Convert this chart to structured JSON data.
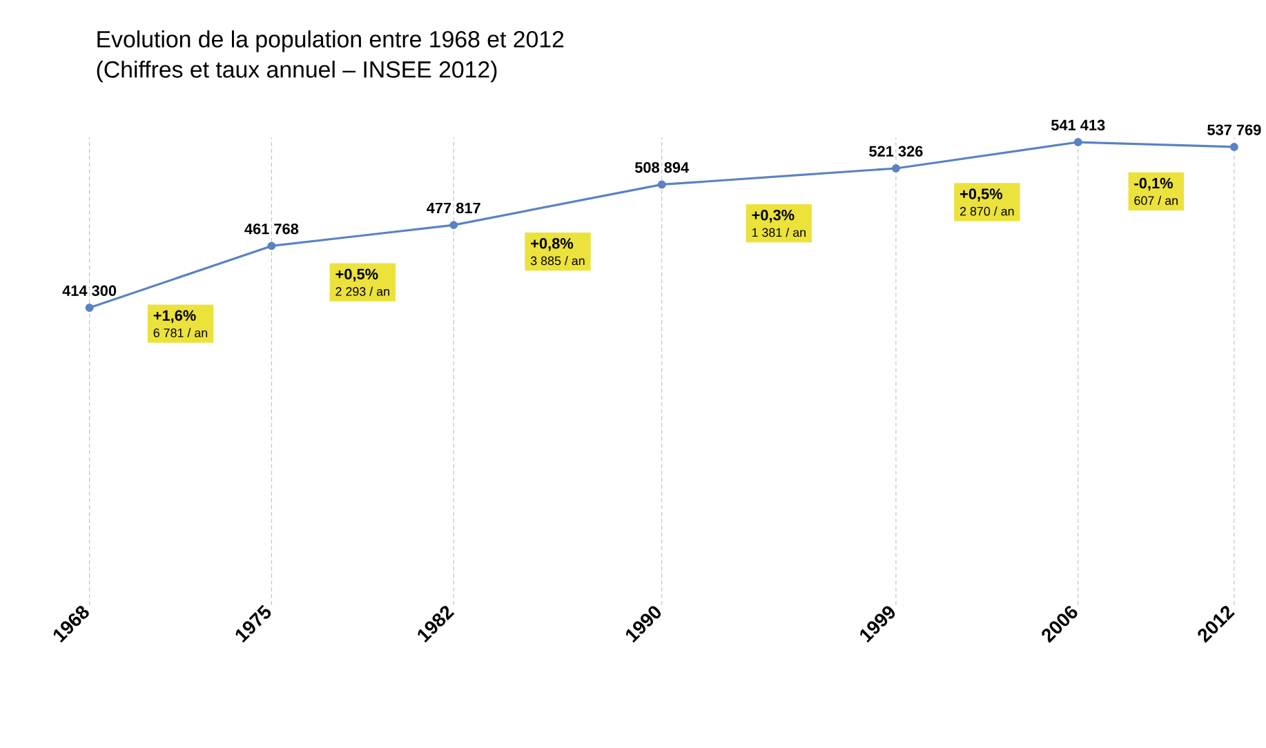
{
  "chart_data": {
    "type": "line",
    "title": "Evolution de la population entre 1968 et 2012",
    "subtitle": "(Chiffres et taux annuel – INSEE 2012)",
    "x": [
      1968,
      1975,
      1982,
      1990,
      1999,
      2006,
      2012
    ],
    "series": [
      {
        "color": "#5a82c4",
        "values": [
          414300,
          461768,
          477817,
          508894,
          521326,
          541413,
          537769
        ],
        "value_labels": [
          "414 300",
          "461 768",
          "477 817",
          "508 894",
          "521 326",
          "541 413",
          "537 769"
        ]
      }
    ],
    "xlim": [
      1968,
      2012
    ],
    "ylim": [
      186000,
      545000
    ],
    "xticks": [
      1968,
      1975,
      1982,
      1990,
      1999,
      2006,
      2012
    ],
    "grid": "x",
    "marker": "circle",
    "annotations": [
      "+1,6%",
      "6 781 / an",
      "+0,5%",
      "2 293 / an",
      "+0,8%",
      "3 885 / an",
      "+0,3%",
      "1 381 / an",
      "+0,5%",
      "2 870 / an",
      "-0,1%",
      "607 / an"
    ]
  }
}
